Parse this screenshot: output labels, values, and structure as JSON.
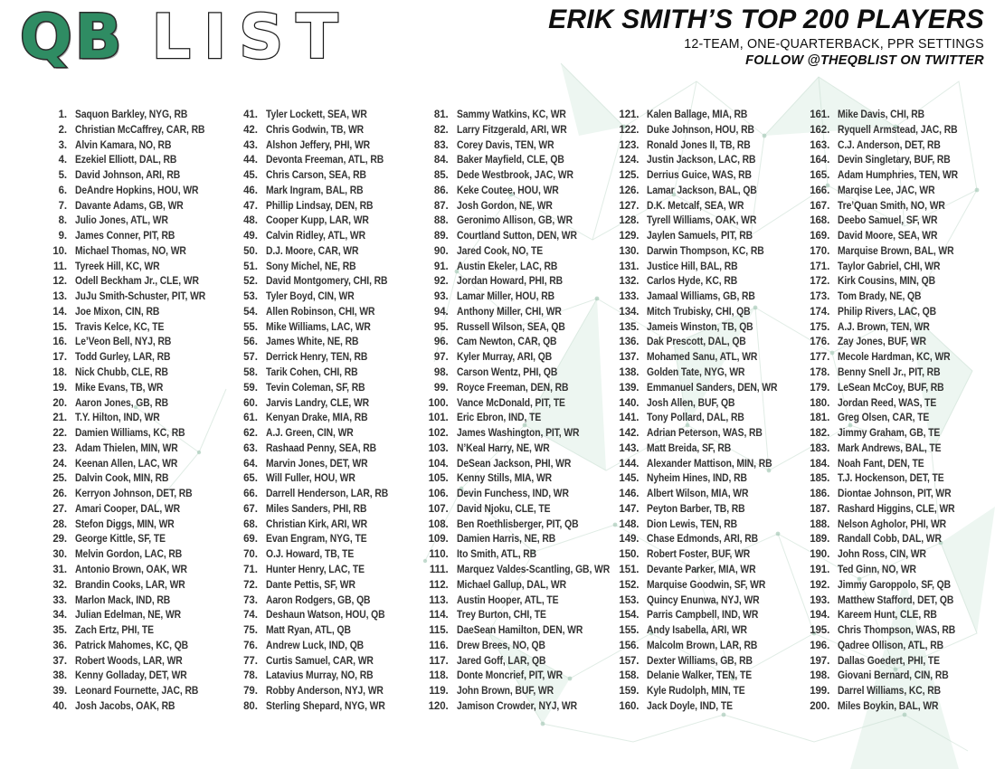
{
  "header": {
    "logo": {
      "qb": "QB",
      "list": "LIST"
    },
    "title": "ERIK SMITH’S TOP 200 PLAYERS",
    "subtitle": "12-TEAM, ONE-QUARTERBACK, PPR SETTINGS",
    "follow": "FOLLOW @THEQBLIST ON TWITTER"
  },
  "colors": {
    "logo_green": "#2f8c63",
    "logo_outline": "#2b2b2b",
    "heading_text": "#0f0f0f",
    "list_text": "#333333",
    "plexus_line": "#c6ddd0",
    "plexus_fill": "#dfeee6",
    "plexus_dot": "#a5c8b6"
  },
  "list": {
    "players_per_column": 40,
    "players": [
      {
        "rank": "1.",
        "player": "Saquon Barkley, NYG, RB"
      },
      {
        "rank": "2.",
        "player": "Christian McCaffrey, CAR, RB"
      },
      {
        "rank": "3.",
        "player": "Alvin Kamara, NO, RB"
      },
      {
        "rank": "4.",
        "player": "Ezekiel Elliott, DAL, RB"
      },
      {
        "rank": "5.",
        "player": "David Johnson, ARI, RB"
      },
      {
        "rank": "6.",
        "player": "DeAndre Hopkins, HOU, WR"
      },
      {
        "rank": "7.",
        "player": "Davante Adams, GB, WR"
      },
      {
        "rank": "8.",
        "player": "Julio Jones, ATL, WR"
      },
      {
        "rank": "9.",
        "player": "James Conner, PIT, RB"
      },
      {
        "rank": "10.",
        "player": "Michael Thomas, NO, WR"
      },
      {
        "rank": "11.",
        "player": "Tyreek Hill, KC, WR"
      },
      {
        "rank": "12.",
        "player": "Odell Beckham Jr., CLE, WR"
      },
      {
        "rank": "13.",
        "player": "JuJu Smith-Schuster, PIT, WR"
      },
      {
        "rank": "14.",
        "player": "Joe Mixon, CIN, RB"
      },
      {
        "rank": "15.",
        "player": "Travis Kelce, KC, TE"
      },
      {
        "rank": "16.",
        "player": "Le’Veon Bell, NYJ, RB"
      },
      {
        "rank": "17.",
        "player": "Todd Gurley, LAR, RB"
      },
      {
        "rank": "18.",
        "player": "Nick Chubb, CLE, RB"
      },
      {
        "rank": "19.",
        "player": "Mike Evans, TB, WR"
      },
      {
        "rank": "20.",
        "player": "Aaron Jones, GB, RB"
      },
      {
        "rank": "21.",
        "player": "T.Y. Hilton, IND, WR"
      },
      {
        "rank": "22.",
        "player": "Damien Williams, KC, RB"
      },
      {
        "rank": "23.",
        "player": "Adam Thielen, MIN, WR"
      },
      {
        "rank": "24.",
        "player": "Keenan Allen, LAC, WR"
      },
      {
        "rank": "25.",
        "player": "Dalvin Cook, MIN, RB"
      },
      {
        "rank": "26.",
        "player": "Kerryon Johnson, DET, RB"
      },
      {
        "rank": "27.",
        "player": "Amari Cooper, DAL, WR"
      },
      {
        "rank": "28.",
        "player": "Stefon Diggs, MIN, WR"
      },
      {
        "rank": "29.",
        "player": "George Kittle, SF, TE"
      },
      {
        "rank": "30.",
        "player": "Melvin Gordon, LAC, RB"
      },
      {
        "rank": "31.",
        "player": "Antonio Brown, OAK, WR"
      },
      {
        "rank": "32.",
        "player": "Brandin Cooks, LAR, WR"
      },
      {
        "rank": "33.",
        "player": "Marlon Mack, IND, RB"
      },
      {
        "rank": "34.",
        "player": "Julian Edelman, NE, WR"
      },
      {
        "rank": "35.",
        "player": "Zach Ertz, PHI, TE"
      },
      {
        "rank": "36.",
        "player": "Patrick Mahomes, KC, QB"
      },
      {
        "rank": "37.",
        "player": "Robert Woods, LAR, WR"
      },
      {
        "rank": "38.",
        "player": "Kenny Golladay, DET, WR"
      },
      {
        "rank": "39.",
        "player": "Leonard Fournette, JAC, RB"
      },
      {
        "rank": "40.",
        "player": "Josh Jacobs, OAK, RB"
      },
      {
        "rank": "41.",
        "player": "Tyler Lockett, SEA, WR"
      },
      {
        "rank": "42.",
        "player": "Chris Godwin, TB, WR"
      },
      {
        "rank": "43.",
        "player": "Alshon Jeffery, PHI, WR"
      },
      {
        "rank": "44.",
        "player": "Devonta Freeman, ATL, RB"
      },
      {
        "rank": "45.",
        "player": "Chris Carson, SEA, RB"
      },
      {
        "rank": "46.",
        "player": "Mark Ingram, BAL, RB"
      },
      {
        "rank": "47.",
        "player": "Phillip Lindsay, DEN, RB"
      },
      {
        "rank": "48.",
        "player": "Cooper Kupp, LAR, WR"
      },
      {
        "rank": "49.",
        "player": "Calvin Ridley, ATL, WR"
      },
      {
        "rank": "50.",
        "player": "D.J. Moore, CAR, WR"
      },
      {
        "rank": "51.",
        "player": "Sony Michel, NE, RB"
      },
      {
        "rank": "52.",
        "player": "David Montgomery, CHI, RB"
      },
      {
        "rank": "53.",
        "player": "Tyler Boyd, CIN, WR"
      },
      {
        "rank": "54.",
        "player": "Allen Robinson, CHI, WR"
      },
      {
        "rank": "55.",
        "player": "Mike Williams, LAC, WR"
      },
      {
        "rank": "56.",
        "player": "James White, NE, RB"
      },
      {
        "rank": "57.",
        "player": "Derrick Henry, TEN, RB"
      },
      {
        "rank": "58.",
        "player": "Tarik Cohen, CHI, RB"
      },
      {
        "rank": "59.",
        "player": "Tevin Coleman, SF, RB"
      },
      {
        "rank": "60.",
        "player": "Jarvis Landry, CLE, WR"
      },
      {
        "rank": "61.",
        "player": "Kenyan Drake, MIA, RB"
      },
      {
        "rank": "62.",
        "player": "A.J. Green, CIN, WR"
      },
      {
        "rank": "63.",
        "player": "Rashaad Penny, SEA, RB"
      },
      {
        "rank": "64.",
        "player": "Marvin Jones, DET, WR"
      },
      {
        "rank": "65.",
        "player": "Will Fuller, HOU, WR"
      },
      {
        "rank": "66.",
        "player": "Darrell Henderson, LAR, RB"
      },
      {
        "rank": "67.",
        "player": "Miles Sanders, PHI, RB"
      },
      {
        "rank": "68.",
        "player": "Christian Kirk, ARI, WR"
      },
      {
        "rank": "69.",
        "player": "Evan Engram, NYG, TE"
      },
      {
        "rank": "70.",
        "player": "O.J. Howard, TB, TE"
      },
      {
        "rank": "71.",
        "player": "Hunter Henry, LAC, TE"
      },
      {
        "rank": "72.",
        "player": "Dante Pettis, SF, WR"
      },
      {
        "rank": "73.",
        "player": "Aaron Rodgers, GB, QB"
      },
      {
        "rank": "74.",
        "player": "Deshaun Watson, HOU, QB"
      },
      {
        "rank": "75.",
        "player": "Matt Ryan, ATL, QB"
      },
      {
        "rank": "76.",
        "player": "Andrew Luck, IND, QB"
      },
      {
        "rank": "77.",
        "player": "Curtis Samuel, CAR, WR"
      },
      {
        "rank": "78.",
        "player": "Latavius Murray, NO, RB"
      },
      {
        "rank": "79.",
        "player": "Robby Anderson, NYJ, WR"
      },
      {
        "rank": "80.",
        "player": "Sterling Shepard, NYG, WR"
      },
      {
        "rank": "81.",
        "player": "Sammy Watkins, KC, WR"
      },
      {
        "rank": "82.",
        "player": "Larry Fitzgerald, ARI, WR"
      },
      {
        "rank": "83.",
        "player": "Corey Davis, TEN, WR"
      },
      {
        "rank": "84.",
        "player": "Baker Mayfield, CLE, QB"
      },
      {
        "rank": "85.",
        "player": "Dede Westbrook, JAC, WR"
      },
      {
        "rank": "86.",
        "player": "Keke Coutee, HOU, WR"
      },
      {
        "rank": "87.",
        "player": "Josh Gordon, NE, WR"
      },
      {
        "rank": "88.",
        "player": "Geronimo Allison, GB, WR"
      },
      {
        "rank": "89.",
        "player": "Courtland Sutton, DEN, WR"
      },
      {
        "rank": "90.",
        "player": "Jared Cook, NO, TE"
      },
      {
        "rank": "91.",
        "player": "Austin Ekeler, LAC, RB"
      },
      {
        "rank": "92.",
        "player": "Jordan Howard, PHI, RB"
      },
      {
        "rank": "93.",
        "player": "Lamar Miller, HOU, RB"
      },
      {
        "rank": "94.",
        "player": "Anthony Miller, CHI, WR"
      },
      {
        "rank": "95.",
        "player": "Russell Wilson, SEA, QB"
      },
      {
        "rank": "96.",
        "player": "Cam Newton, CAR, QB"
      },
      {
        "rank": "97.",
        "player": "Kyler Murray, ARI, QB"
      },
      {
        "rank": "98.",
        "player": "Carson Wentz, PHI, QB"
      },
      {
        "rank": "99.",
        "player": "Royce Freeman, DEN, RB"
      },
      {
        "rank": "100.",
        "player": "Vance McDonald, PIT, TE"
      },
      {
        "rank": "101.",
        "player": "Eric Ebron, IND, TE"
      },
      {
        "rank": "102.",
        "player": "James Washington, PIT, WR"
      },
      {
        "rank": "103.",
        "player": "N’Keal Harry, NE, WR"
      },
      {
        "rank": "104.",
        "player": "DeSean Jackson, PHI, WR"
      },
      {
        "rank": "105.",
        "player": "Kenny Stills, MIA, WR"
      },
      {
        "rank": "106.",
        "player": "Devin Funchess, IND, WR"
      },
      {
        "rank": "107.",
        "player": "David Njoku, CLE, TE"
      },
      {
        "rank": "108.",
        "player": "Ben Roethlisberger, PIT, QB"
      },
      {
        "rank": "109.",
        "player": "Damien Harris, NE, RB"
      },
      {
        "rank": "110.",
        "player": "Ito Smith, ATL, RB"
      },
      {
        "rank": "111.",
        "player": "Marquez Valdes-Scantling, GB, WR"
      },
      {
        "rank": "112.",
        "player": "Michael Gallup, DAL, WR"
      },
      {
        "rank": "113.",
        "player": "Austin Hooper, ATL, TE"
      },
      {
        "rank": "114.",
        "player": "Trey Burton, CHI, TE"
      },
      {
        "rank": "115.",
        "player": "DaeSean Hamilton, DEN, WR"
      },
      {
        "rank": "116.",
        "player": "Drew Brees, NO, QB"
      },
      {
        "rank": "117.",
        "player": "Jared Goff, LAR, QB"
      },
      {
        "rank": "118.",
        "player": "Donte Moncrief, PIT, WR"
      },
      {
        "rank": "119.",
        "player": "John Brown, BUF, WR"
      },
      {
        "rank": "120.",
        "player": "Jamison Crowder, NYJ, WR"
      },
      {
        "rank": "121.",
        "player": "Kalen Ballage, MIA, RB"
      },
      {
        "rank": "122.",
        "player": "Duke Johnson, HOU, RB"
      },
      {
        "rank": "123.",
        "player": "Ronald Jones II, TB, RB"
      },
      {
        "rank": "124.",
        "player": "Justin Jackson, LAC, RB"
      },
      {
        "rank": "125.",
        "player": "Derrius Guice, WAS, RB"
      },
      {
        "rank": "126.",
        "player": "Lamar Jackson, BAL, QB"
      },
      {
        "rank": "127.",
        "player": "D.K. Metcalf, SEA, WR"
      },
      {
        "rank": "128.",
        "player": "Tyrell Williams, OAK, WR"
      },
      {
        "rank": "129.",
        "player": "Jaylen Samuels, PIT, RB"
      },
      {
        "rank": "130.",
        "player": "Darwin Thompson, KC, RB"
      },
      {
        "rank": "131.",
        "player": "Justice Hill, BAL, RB"
      },
      {
        "rank": "132.",
        "player": "Carlos Hyde, KC, RB"
      },
      {
        "rank": "133.",
        "player": "Jamaal Williams, GB, RB"
      },
      {
        "rank": "134.",
        "player": "Mitch Trubisky, CHI, QB"
      },
      {
        "rank": "135.",
        "player": "Jameis Winston, TB, QB"
      },
      {
        "rank": "136.",
        "player": "Dak Prescott, DAL, QB"
      },
      {
        "rank": "137.",
        "player": "Mohamed Sanu, ATL, WR"
      },
      {
        "rank": "138.",
        "player": "Golden Tate, NYG, WR"
      },
      {
        "rank": "139.",
        "player": "Emmanuel Sanders, DEN, WR"
      },
      {
        "rank": "140.",
        "player": "Josh Allen, BUF, QB"
      },
      {
        "rank": "141.",
        "player": "Tony Pollard, DAL, RB"
      },
      {
        "rank": "142.",
        "player": "Adrian Peterson, WAS, RB"
      },
      {
        "rank": "143.",
        "player": "Matt Breida, SF, RB"
      },
      {
        "rank": "144.",
        "player": "Alexander Mattison, MIN, RB"
      },
      {
        "rank": "145.",
        "player": "Nyheim Hines, IND, RB"
      },
      {
        "rank": "146.",
        "player": "Albert Wilson, MIA, WR"
      },
      {
        "rank": "147.",
        "player": "Peyton Barber, TB, RB"
      },
      {
        "rank": "148.",
        "player": "Dion Lewis, TEN, RB"
      },
      {
        "rank": "149.",
        "player": "Chase Edmonds, ARI, RB"
      },
      {
        "rank": "150.",
        "player": "Robert Foster, BUF, WR"
      },
      {
        "rank": "151.",
        "player": "Devante Parker, MIA, WR"
      },
      {
        "rank": "152.",
        "player": "Marquise Goodwin, SF, WR"
      },
      {
        "rank": "153.",
        "player": "Quincy Enunwa, NYJ, WR"
      },
      {
        "rank": "154.",
        "player": "Parris Campbell, IND, WR"
      },
      {
        "rank": "155.",
        "player": "Andy Isabella, ARI, WR"
      },
      {
        "rank": "156.",
        "player": "Malcolm Brown, LAR, RB"
      },
      {
        "rank": "157.",
        "player": "Dexter Williams, GB, RB"
      },
      {
        "rank": "158.",
        "player": "Delanie Walker, TEN, TE"
      },
      {
        "rank": "159.",
        "player": "Kyle Rudolph, MIN, TE"
      },
      {
        "rank": "160.",
        "player": "Jack Doyle, IND, TE"
      },
      {
        "rank": "161.",
        "player": "Mike Davis, CHI, RB"
      },
      {
        "rank": "162.",
        "player": "Ryquell Armstead, JAC, RB"
      },
      {
        "rank": "163.",
        "player": "C.J. Anderson, DET, RB"
      },
      {
        "rank": "164.",
        "player": "Devin Singletary, BUF, RB"
      },
      {
        "rank": "165.",
        "player": "Adam Humphries, TEN, WR"
      },
      {
        "rank": "166.",
        "player": "Marqise Lee, JAC, WR"
      },
      {
        "rank": "167.",
        "player": "Tre’Quan Smith, NO, WR"
      },
      {
        "rank": "168.",
        "player": "Deebo Samuel, SF, WR"
      },
      {
        "rank": "169.",
        "player": "David Moore, SEA, WR"
      },
      {
        "rank": "170.",
        "player": "Marquise Brown, BAL, WR"
      },
      {
        "rank": "171.",
        "player": "Taylor Gabriel, CHI, WR"
      },
      {
        "rank": "172.",
        "player": "Kirk Cousins, MIN, QB"
      },
      {
        "rank": "173.",
        "player": "Tom Brady, NE, QB"
      },
      {
        "rank": "174.",
        "player": "Philip Rivers, LAC, QB"
      },
      {
        "rank": "175.",
        "player": "A.J. Brown, TEN, WR"
      },
      {
        "rank": "176.",
        "player": "Zay Jones, BUF, WR"
      },
      {
        "rank": "177.",
        "player": "Mecole Hardman, KC, WR"
      },
      {
        "rank": "178.",
        "player": "Benny Snell Jr., PIT, RB"
      },
      {
        "rank": "179.",
        "player": "LeSean McCoy, BUF, RB"
      },
      {
        "rank": "180.",
        "player": "Jordan Reed, WAS, TE"
      },
      {
        "rank": "181.",
        "player": "Greg Olsen, CAR, TE"
      },
      {
        "rank": "182.",
        "player": "Jimmy Graham, GB, TE"
      },
      {
        "rank": "183.",
        "player": "Mark Andrews, BAL, TE"
      },
      {
        "rank": "184.",
        "player": "Noah Fant, DEN, TE"
      },
      {
        "rank": "185.",
        "player": "T.J. Hockenson, DET, TE"
      },
      {
        "rank": "186.",
        "player": "Diontae Johnson, PIT, WR"
      },
      {
        "rank": "187.",
        "player": "Rashard Higgins, CLE, WR"
      },
      {
        "rank": "188.",
        "player": "Nelson Agholor, PHI, WR"
      },
      {
        "rank": "189.",
        "player": "Randall Cobb, DAL, WR"
      },
      {
        "rank": "190.",
        "player": "John Ross, CIN, WR"
      },
      {
        "rank": "191.",
        "player": "Ted Ginn, NO, WR"
      },
      {
        "rank": "192.",
        "player": "Jimmy Garoppolo, SF, QB"
      },
      {
        "rank": "193.",
        "player": "Matthew Stafford, DET, QB"
      },
      {
        "rank": "194.",
        "player": "Kareem Hunt, CLE, RB"
      },
      {
        "rank": "195.",
        "player": "Chris Thompson, WAS, RB"
      },
      {
        "rank": "196.",
        "player": "Qadree Ollison, ATL, RB"
      },
      {
        "rank": "197.",
        "player": "Dallas Goedert, PHI, TE"
      },
      {
        "rank": "198.",
        "player": "Giovani Bernard, CIN, RB"
      },
      {
        "rank": "199.",
        "player": "Darrel Williams, KC, RB"
      },
      {
        "rank": "200.",
        "player": "Miles Boykin, BAL, WR"
      }
    ]
  }
}
